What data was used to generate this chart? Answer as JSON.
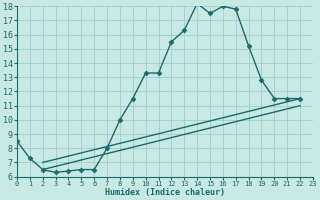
{
  "xlabel": "Humidex (Indice chaleur)",
  "bg_color": "#c8e8e4",
  "line_color": "#1a6b6b",
  "grid_color": "#9ecece",
  "xmin": 0,
  "xmax": 23,
  "ymin": 6,
  "ymax": 18,
  "yticks": [
    6,
    7,
    8,
    9,
    10,
    11,
    12,
    13,
    14,
    15,
    16,
    17,
    18
  ],
  "xticks": [
    0,
    1,
    2,
    3,
    4,
    5,
    6,
    7,
    8,
    9,
    10,
    11,
    12,
    13,
    14,
    15,
    16,
    17,
    18,
    19,
    20,
    21,
    22,
    23
  ],
  "line1_x": [
    0,
    1,
    2,
    3,
    4,
    5,
    6,
    7,
    8,
    9,
    10,
    11,
    12,
    13,
    14,
    15,
    16,
    17,
    18,
    19,
    20,
    21,
    22
  ],
  "line1_y": [
    8.5,
    7.3,
    6.5,
    6.3,
    6.4,
    6.5,
    6.5,
    8.0,
    10.0,
    11.5,
    13.3,
    13.3,
    15.5,
    16.3,
    18.2,
    17.5,
    18.0,
    17.8,
    15.2,
    12.8,
    11.5,
    11.5,
    11.5
  ],
  "line2_x": [
    2,
    22
  ],
  "line2_y": [
    6.5,
    11.0
  ],
  "line3_x": [
    2,
    22
  ],
  "line3_y": [
    7.0,
    11.5
  ],
  "marker_size": 2.5,
  "lw": 1.0
}
